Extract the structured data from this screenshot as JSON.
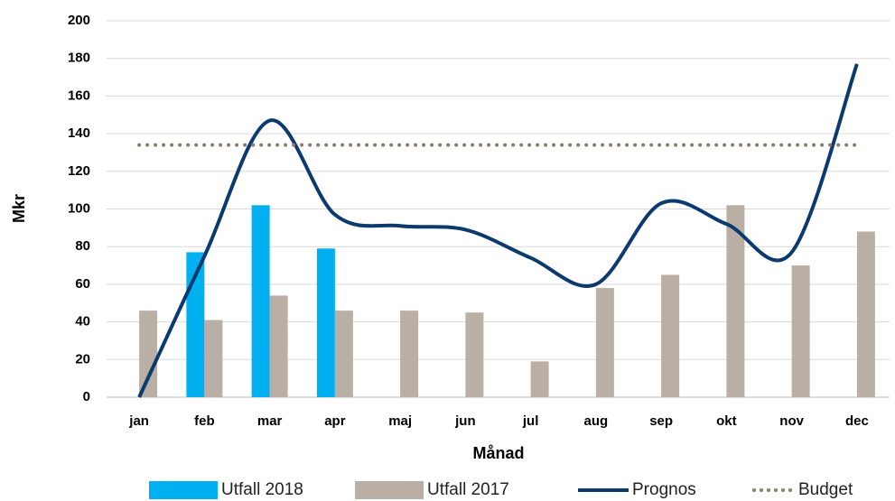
{
  "chart_data": {
    "type": "bar_line",
    "xlabel": "Månad",
    "ylabel": "Mkr",
    "categories": [
      "jan",
      "feb",
      "mar",
      "apr",
      "maj",
      "jun",
      "jul",
      "aug",
      "sep",
      "okt",
      "nov",
      "dec"
    ],
    "series": [
      {
        "name": "Utfall 2018",
        "type": "bar",
        "color": "#00b0f0",
        "values": [
          null,
          77,
          102,
          79,
          null,
          null,
          null,
          null,
          null,
          null,
          null,
          null
        ]
      },
      {
        "name": "Utfall 2017",
        "type": "bar",
        "color": "#b9afa5",
        "values": [
          46,
          41,
          54,
          46,
          46,
          45,
          19,
          58,
          65,
          102,
          70,
          88
        ]
      },
      {
        "name": "Prognos",
        "type": "line",
        "color": "#0b3a6e",
        "values": [
          0,
          75,
          147,
          97,
          91,
          89,
          74,
          60,
          103,
          92,
          77,
          177
        ]
      },
      {
        "name": "Budget",
        "type": "dotted",
        "color": "#8c7b6b",
        "values": [
          134,
          134,
          134,
          134,
          134,
          134,
          134,
          134,
          134,
          134,
          134,
          134
        ]
      }
    ],
    "ylim": [
      0,
      200
    ],
    "yticks": [
      0,
      20,
      40,
      60,
      80,
      100,
      120,
      140,
      160,
      180,
      200
    ],
    "grid": true
  }
}
